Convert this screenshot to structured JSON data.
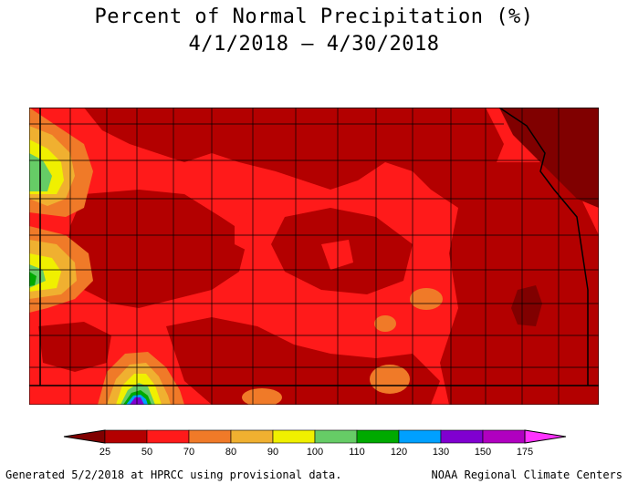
{
  "title": "Percent of Normal Precipitation (%)",
  "subtitle": "4/1/2018 – 4/30/2018",
  "footer": {
    "left": "Generated 5/2/2018 at HPRCC using provisional data.",
    "right": "NOAA Regional Climate Centers"
  },
  "legend": {
    "min_color": "#800000",
    "max_color": "#ff33ff",
    "bins": [
      {
        "from": 25,
        "to": 50,
        "color": "#b30000"
      },
      {
        "from": 50,
        "to": 70,
        "color": "#ff1a1a"
      },
      {
        "from": 70,
        "to": 80,
        "color": "#f07a28"
      },
      {
        "from": 80,
        "to": 90,
        "color": "#f0b030"
      },
      {
        "from": 90,
        "to": 100,
        "color": "#f0f000"
      },
      {
        "from": 100,
        "to": 110,
        "color": "#66cc66"
      },
      {
        "from": 110,
        "to": 120,
        "color": "#00aa00"
      },
      {
        "from": 120,
        "to": 130,
        "color": "#00a0ff"
      },
      {
        "from": 130,
        "to": 150,
        "color": "#8000d0"
      },
      {
        "from": 150,
        "to": 175,
        "color": "#b000c0"
      }
    ],
    "tick_labels": [
      "25",
      "50",
      "70",
      "80",
      "90",
      "100",
      "110",
      "120",
      "130",
      "150",
      "175"
    ]
  },
  "map": {
    "region": "Kansas",
    "background_color": "#ff1a1a"
  }
}
